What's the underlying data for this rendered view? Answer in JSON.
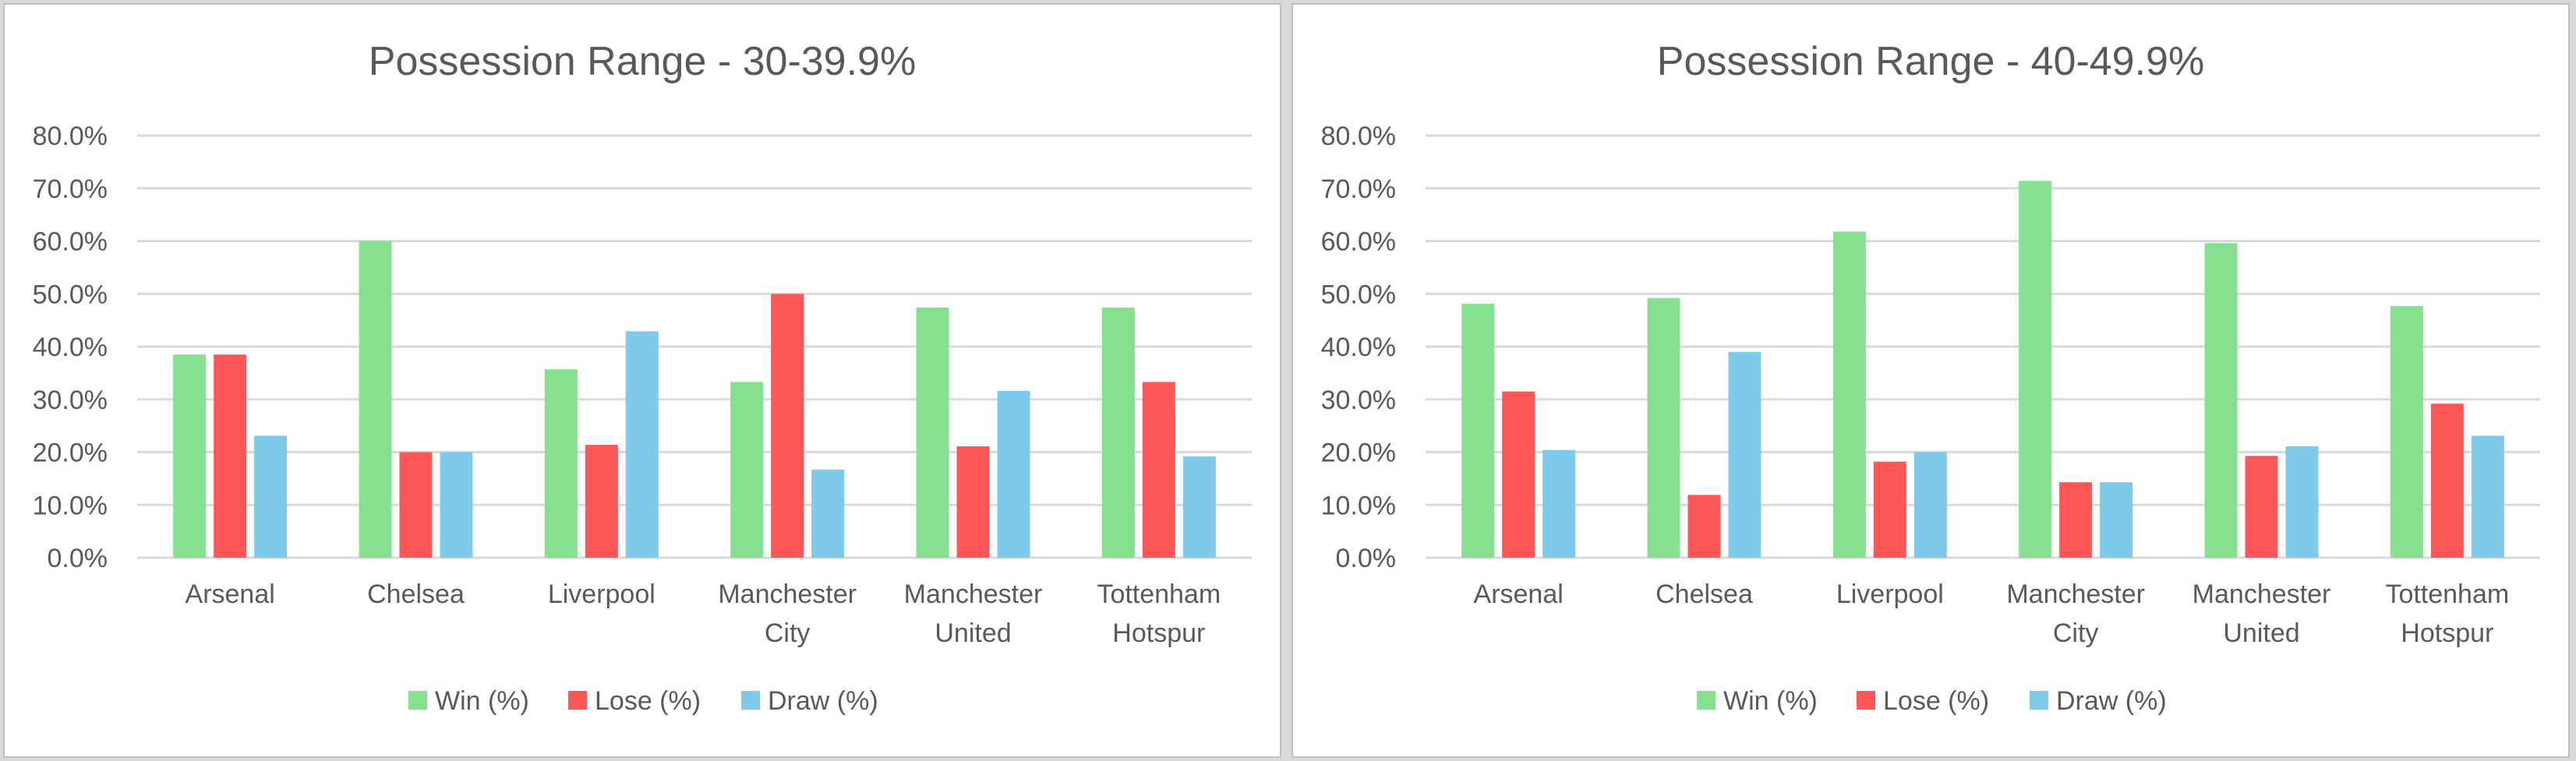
{
  "colors": {
    "win": "#85e08f",
    "lose": "#ff5757",
    "draw": "#7fc9ea"
  },
  "chart_data": [
    {
      "type": "bar",
      "title": "Possession Range - 30-39.9%",
      "categories": [
        [
          "Arsenal"
        ],
        [
          "Chelsea"
        ],
        [
          "Liverpool"
        ],
        [
          "Manchester",
          "City"
        ],
        [
          "Manchester",
          "United"
        ],
        [
          "Tottenham",
          "Hotspur"
        ]
      ],
      "series": [
        {
          "name": "Win (%)",
          "color_key": "win",
          "values": [
            38.5,
            60.0,
            35.7,
            33.3,
            47.4,
            47.4
          ]
        },
        {
          "name": "Lose (%)",
          "color_key": "lose",
          "values": [
            38.5,
            20.0,
            21.4,
            50.0,
            21.1,
            33.3
          ]
        },
        {
          "name": "Draw (%)",
          "color_key": "draw",
          "values": [
            23.1,
            20.0,
            42.9,
            16.7,
            31.6,
            19.2
          ]
        }
      ],
      "yticks": [
        "0.0%",
        "10.0%",
        "20.0%",
        "30.0%",
        "40.0%",
        "50.0%",
        "60.0%",
        "70.0%",
        "80.0%"
      ],
      "ylim": [
        0,
        80
      ],
      "grid": true,
      "legend_position": "bottom"
    },
    {
      "type": "bar",
      "title": "Possession Range - 40-49.9%",
      "categories": [
        [
          "Arsenal"
        ],
        [
          "Chelsea"
        ],
        [
          "Liverpool"
        ],
        [
          "Manchester",
          "City"
        ],
        [
          "Manchester",
          "United"
        ],
        [
          "Tottenham",
          "Hotspur"
        ]
      ],
      "series": [
        {
          "name": "Win (%)",
          "color_key": "win",
          "values": [
            48.1,
            49.2,
            61.8,
            71.4,
            59.6,
            47.7
          ]
        },
        {
          "name": "Lose (%)",
          "color_key": "lose",
          "values": [
            31.5,
            11.9,
            18.2,
            14.3,
            19.3,
            29.2
          ]
        },
        {
          "name": "Draw (%)",
          "color_key": "draw",
          "values": [
            20.4,
            39.0,
            20.0,
            14.3,
            21.1,
            23.1
          ]
        }
      ],
      "yticks": [
        "0.0%",
        "10.0%",
        "20.0%",
        "30.0%",
        "40.0%",
        "50.0%",
        "60.0%",
        "70.0%",
        "80.0%"
      ],
      "ylim": [
        0,
        80
      ],
      "grid": true,
      "legend_position": "bottom"
    }
  ]
}
